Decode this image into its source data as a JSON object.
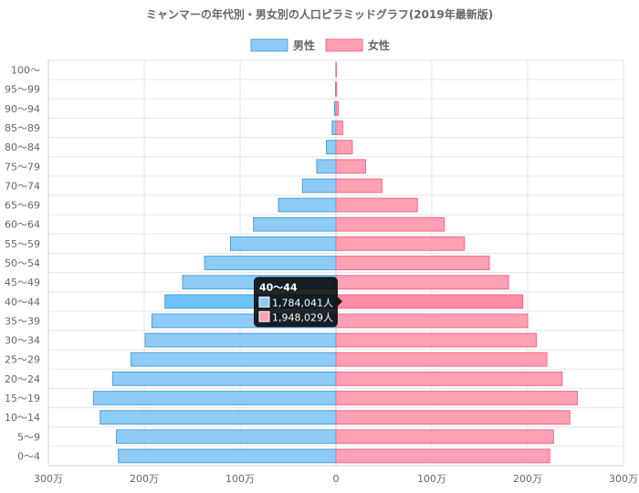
{
  "chart_data": {
    "type": "bar",
    "orientation": "horizontal-population-pyramid",
    "title": "ミャンマーの年代別・男女別の人口ピラミッドグラフ(2019年最新版)",
    "categories": [
      "100〜",
      "95〜99",
      "90〜94",
      "85〜89",
      "80〜84",
      "75〜79",
      "70〜74",
      "65〜69",
      "60〜64",
      "55〜59",
      "50〜54",
      "45〜49",
      "40〜44",
      "35〜39",
      "30〜34",
      "25〜29",
      "20〜24",
      "15〜19",
      "10〜14",
      "5〜9",
      "0〜4"
    ],
    "series": [
      {
        "name": "男性",
        "color": "#8ecbf5",
        "border": "#4aa3df",
        "values": [
          1000,
          5000,
          15000,
          40000,
          100000,
          200000,
          350000,
          600000,
          860000,
          1100000,
          1370000,
          1600000,
          1784041,
          1920000,
          1990000,
          2140000,
          2330000,
          2530000,
          2460000,
          2290000,
          2270000
        ]
      },
      {
        "name": "女性",
        "color": "#ffa0b4",
        "border": "#f06a8b",
        "values": [
          2000,
          7000,
          25000,
          70000,
          170000,
          310000,
          480000,
          850000,
          1130000,
          1340000,
          1600000,
          1800000,
          1948029,
          2000000,
          2090000,
          2200000,
          2360000,
          2520000,
          2440000,
          2270000,
          2230000
        ]
      }
    ],
    "xlim": [
      -3000000,
      3000000
    ],
    "x_ticks": [
      {
        "value": -3000000,
        "label": "300万"
      },
      {
        "value": -2000000,
        "label": "200万"
      },
      {
        "value": -1000000,
        "label": "100万"
      },
      {
        "value": 0,
        "label": "0"
      },
      {
        "value": 1000000,
        "label": "100万"
      },
      {
        "value": 2000000,
        "label": "200万"
      },
      {
        "value": 3000000,
        "label": "300万"
      }
    ],
    "grid": true,
    "legend_position": "top-center",
    "tooltip": {
      "category": "40〜44",
      "title": "40〜44",
      "lines": [
        "1,784,041人",
        "1,948,029人"
      ]
    }
  }
}
